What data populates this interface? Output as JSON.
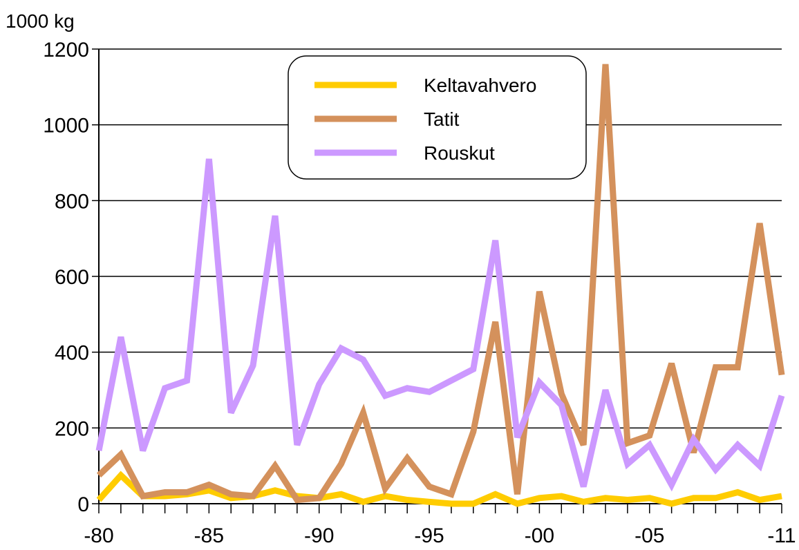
{
  "chart_data": {
    "type": "line",
    "ylabel": "1000 kg",
    "ylim": [
      0,
      1200
    ],
    "yticks": [
      0,
      200,
      400,
      600,
      800,
      1000,
      1200
    ],
    "xlim": [
      1980,
      2011
    ],
    "xticks": [
      {
        "value": 1980,
        "label": "-80"
      },
      {
        "value": 1985,
        "label": "-85"
      },
      {
        "value": 1990,
        "label": "-90"
      },
      {
        "value": 1995,
        "label": "-95"
      },
      {
        "value": 2000,
        "label": "-00"
      },
      {
        "value": 2005,
        "label": "-05"
      },
      {
        "value": 2011,
        "label": "-11"
      }
    ],
    "grid": "horizontal",
    "legend_position": "top-center",
    "x": [
      1980,
      1981,
      1982,
      1983,
      1984,
      1985,
      1986,
      1987,
      1988,
      1989,
      1990,
      1991,
      1992,
      1993,
      1994,
      1995,
      1996,
      1997,
      1998,
      1999,
      2000,
      2001,
      2002,
      2003,
      2004,
      2005,
      2006,
      2007,
      2008,
      2009,
      2010,
      2011
    ],
    "series": [
      {
        "name": "Keltavahvero",
        "color": "#ffcc00",
        "values": [
          10,
          75,
          20,
          20,
          25,
          35,
          15,
          20,
          35,
          20,
          15,
          25,
          5,
          20,
          10,
          5,
          0,
          0,
          25,
          0,
          15,
          20,
          5,
          15,
          10,
          15,
          0,
          15,
          15,
          30,
          10,
          20
        ]
      },
      {
        "name": "Tatit",
        "color": "#d4915c",
        "values": [
          75,
          130,
          20,
          30,
          30,
          50,
          25,
          20,
          100,
          10,
          15,
          105,
          240,
          40,
          120,
          45,
          25,
          190,
          480,
          25,
          560,
          290,
          155,
          1160,
          160,
          180,
          370,
          135,
          360,
          360,
          740,
          340
        ]
      },
      {
        "name": "Rouskut",
        "color": "#cc99ff",
        "values": [
          140,
          440,
          140,
          305,
          325,
          910,
          240,
          365,
          760,
          155,
          315,
          410,
          380,
          285,
          305,
          295,
          325,
          355,
          695,
          175,
          320,
          260,
          45,
          300,
          105,
          155,
          50,
          170,
          90,
          155,
          100,
          285
        ]
      }
    ]
  }
}
